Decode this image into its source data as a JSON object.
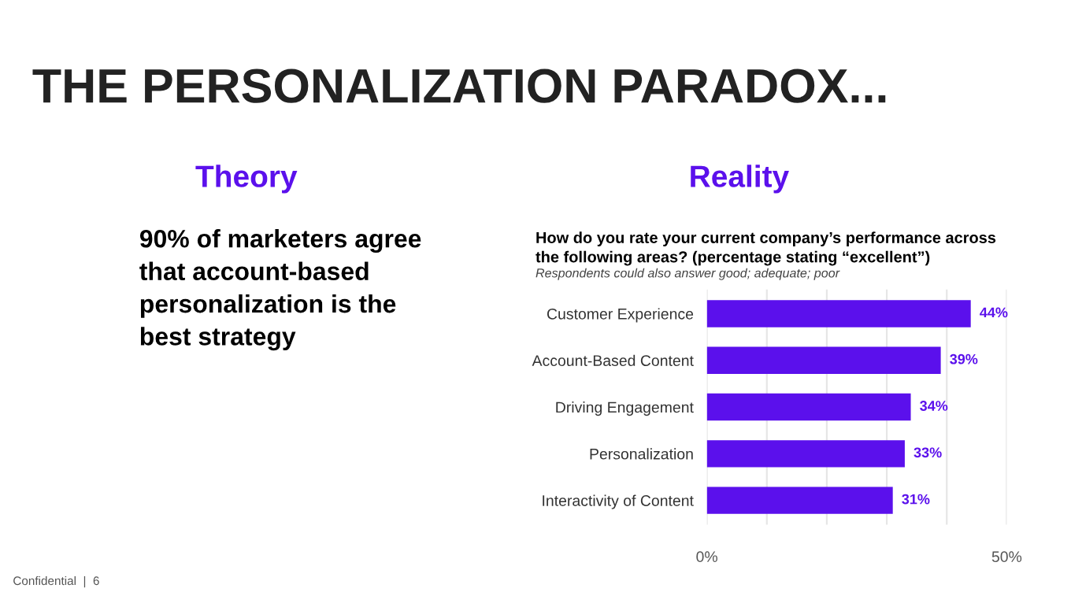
{
  "chart_data": [
    {
      "type": "other",
      "title": "THE PERSONALIZATION PARADOX...",
      "subtitle": "Theory",
      "annotations": [
        "90% of marketers agree\nthat account-based\npersonalization is the\nbest strategy",
        "Confidential  |  6"
      ]
    },
    {
      "type": "bar",
      "orientation": "horizontal",
      "title": "Reality",
      "subtitle": "How do you rate your current company’s performance across\nthe following areas? (percentage stating “excellent”)",
      "annotations": [
        "Respondents could also answer good; adequate; poor"
      ],
      "categories": [
        "Customer Experience",
        "Account-Based Content",
        "Driving Engagement",
        "Personalization",
        "Interactivity of Content"
      ],
      "values": [
        44,
        39,
        34,
        33,
        31
      ],
      "color": "#5b10ec",
      "value_labels": [
        "44%",
        "39%",
        "34%",
        "33%",
        "31%"
      ],
      "xlim": [
        0,
        50
      ],
      "xticks": [
        {
          "value": 0,
          "label": "0%"
        },
        {
          "value": 10,
          "label": null
        },
        {
          "value": 20,
          "label": null
        },
        {
          "value": 30,
          "label": null
        },
        {
          "value": 40,
          "label": null
        },
        {
          "value": 50,
          "label": "50%"
        }
      ],
      "grid": "x"
    }
  ]
}
